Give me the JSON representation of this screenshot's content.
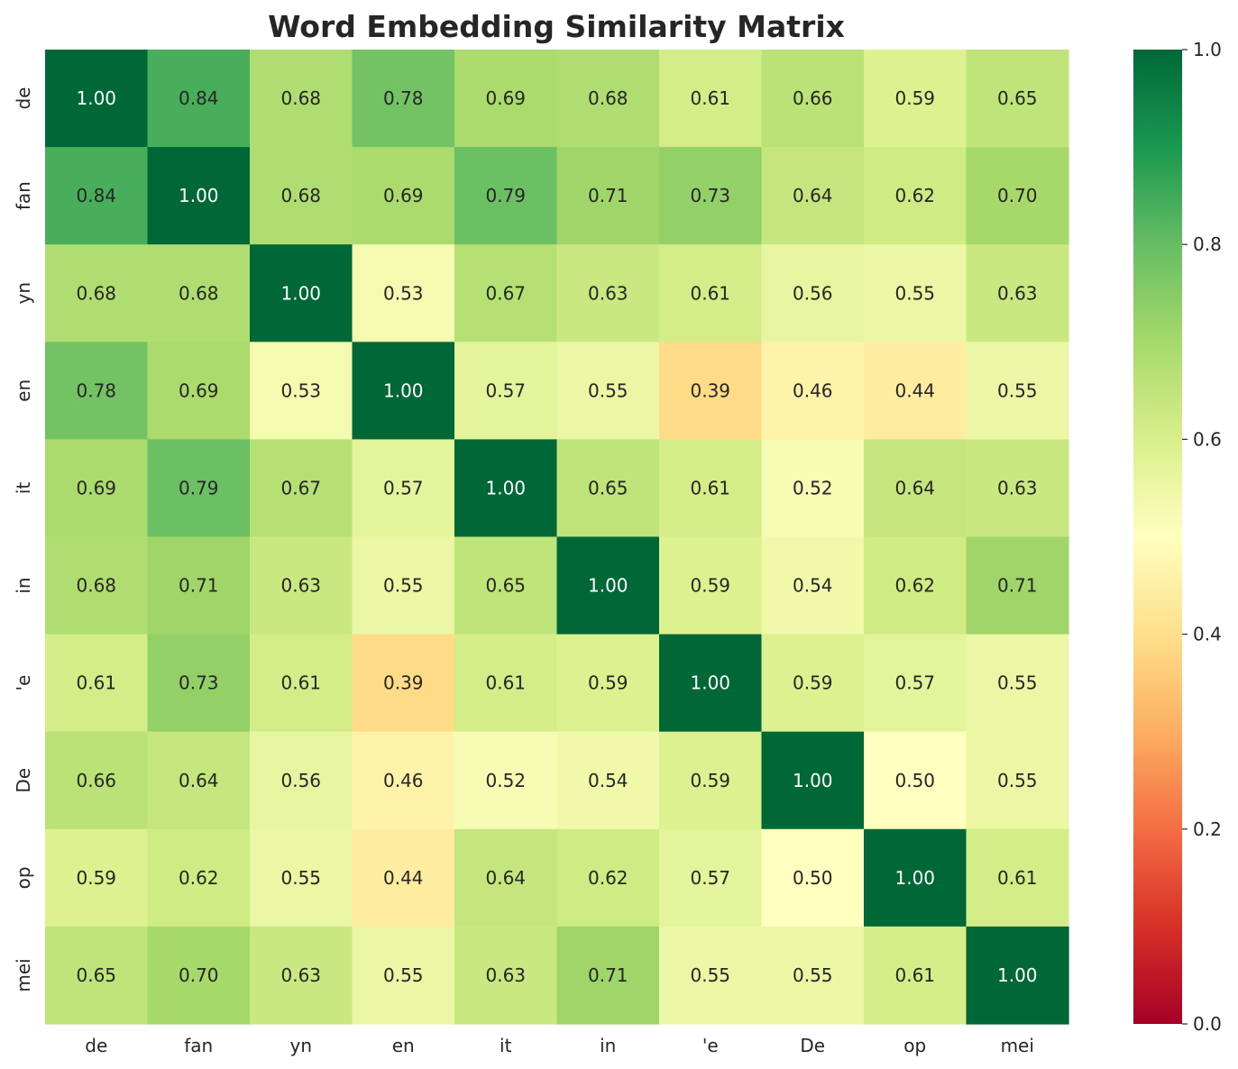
{
  "chart_data": {
    "type": "heatmap",
    "title": "Word Embedding Similarity Matrix",
    "xlabel": "",
    "ylabel": "",
    "x_labels": [
      "de",
      "fan",
      "yn",
      "en",
      "it",
      "in",
      "'e",
      "De",
      "op",
      "mei"
    ],
    "y_labels": [
      "de",
      "fan",
      "yn",
      "en",
      "it",
      "in",
      "'e",
      "De",
      "op",
      "mei"
    ],
    "values": [
      [
        1.0,
        0.84,
        0.68,
        0.78,
        0.69,
        0.68,
        0.61,
        0.66,
        0.59,
        0.65
      ],
      [
        0.84,
        1.0,
        0.68,
        0.69,
        0.79,
        0.71,
        0.73,
        0.64,
        0.62,
        0.7
      ],
      [
        0.68,
        0.68,
        1.0,
        0.53,
        0.67,
        0.63,
        0.61,
        0.56,
        0.55,
        0.63
      ],
      [
        0.78,
        0.69,
        0.53,
        1.0,
        0.57,
        0.55,
        0.39,
        0.46,
        0.44,
        0.55
      ],
      [
        0.69,
        0.79,
        0.67,
        0.57,
        1.0,
        0.65,
        0.61,
        0.52,
        0.64,
        0.63
      ],
      [
        0.68,
        0.71,
        0.63,
        0.55,
        0.65,
        1.0,
        0.59,
        0.54,
        0.62,
        0.71
      ],
      [
        0.61,
        0.73,
        0.61,
        0.39,
        0.61,
        0.59,
        1.0,
        0.59,
        0.57,
        0.55
      ],
      [
        0.66,
        0.64,
        0.56,
        0.46,
        0.52,
        0.54,
        0.59,
        1.0,
        0.5,
        0.55
      ],
      [
        0.59,
        0.62,
        0.55,
        0.44,
        0.64,
        0.62,
        0.57,
        0.5,
        1.0,
        0.61
      ],
      [
        0.65,
        0.7,
        0.63,
        0.55,
        0.63,
        0.71,
        0.55,
        0.55,
        0.61,
        1.0
      ]
    ],
    "value_format": "2 decimals",
    "colormap": "RdYlGn",
    "color_range": [
      0.0,
      1.0
    ],
    "colorbar_ticks": [
      "0.0",
      "0.2",
      "0.4",
      "0.6",
      "0.8",
      "1.0"
    ],
    "colorbar_tick_values": [
      0.0,
      0.2,
      0.4,
      0.6,
      0.8,
      1.0
    ],
    "colorbar_position": "right",
    "grid": false,
    "colors": {
      "low": "#a50026",
      "mid": "#ffffbf",
      "high": "#006837",
      "text_dark": "#262626",
      "text_light": "#ffffff"
    }
  }
}
